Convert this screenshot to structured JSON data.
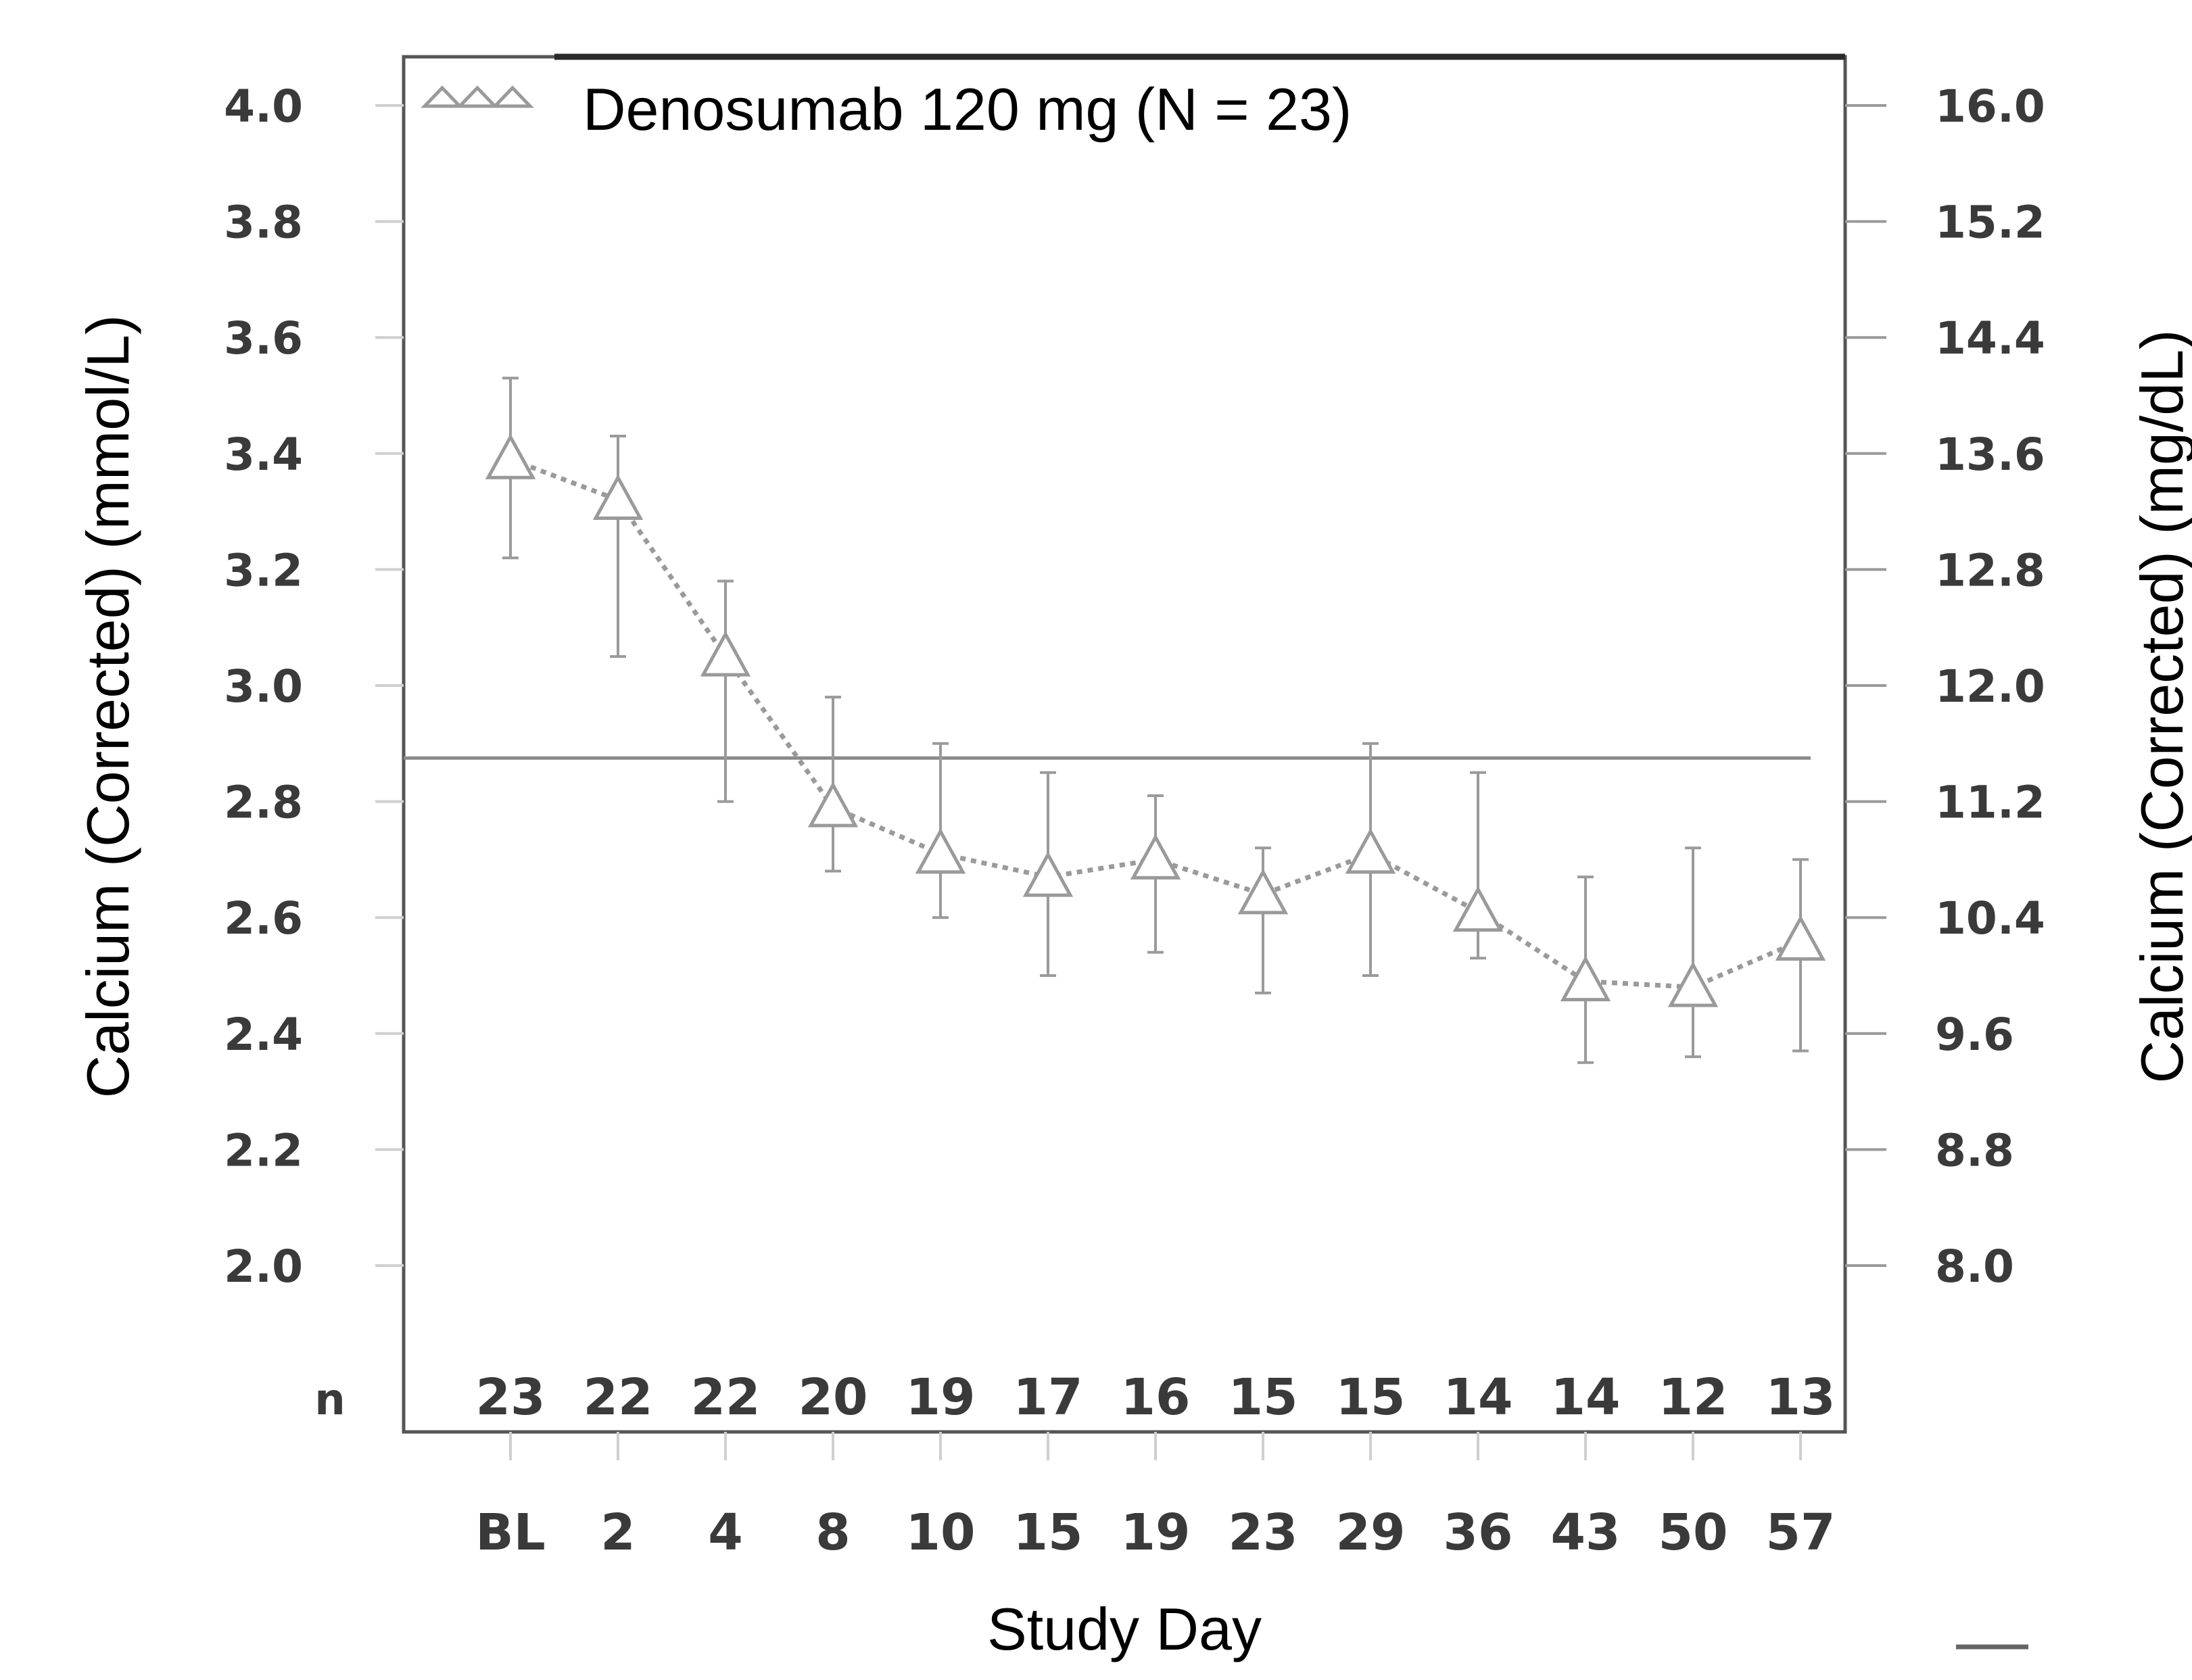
{
  "chart_data": {
    "type": "line",
    "title": "",
    "xlabel": "Study Day",
    "ylabel_left": "Calcium (Corrected) (mmol/L)",
    "ylabel_right": "Calcium (Corrected) (mg/dL)",
    "ylim": [
      1.8,
      4.0
    ],
    "left_ticks": [
      "2.0",
      "2.2",
      "2.4",
      "2.6",
      "2.8",
      "3.0",
      "3.2",
      "3.4",
      "3.6",
      "3.8",
      "4.0"
    ],
    "left_tick_values": [
      2.0,
      2.2,
      2.4,
      2.6,
      2.8,
      3.0,
      3.2,
      3.4,
      3.6,
      3.8,
      4.0
    ],
    "right_ticks": [
      "8.0",
      "8.8",
      "9.6",
      "10.4",
      "11.2",
      "12.0",
      "12.8",
      "13.6",
      "14.4",
      "15.2",
      "16.0"
    ],
    "right_tick_values": [
      8.0,
      8.8,
      9.6,
      10.4,
      11.2,
      12.0,
      12.8,
      13.6,
      14.4,
      15.2,
      16.0
    ],
    "categories": [
      "BL",
      "2",
      "4",
      "8",
      "10",
      "15",
      "19",
      "23",
      "29",
      "36",
      "43",
      "50",
      "57"
    ],
    "n_label": "n",
    "n_values": [
      "23",
      "22",
      "22",
      "20",
      "19",
      "17",
      "16",
      "15",
      "15",
      "14",
      "14",
      "12",
      "13"
    ],
    "reference_line": 2.875,
    "legend": {
      "position": "top-left",
      "label": "Denosumab 120 mg (N = 23)"
    },
    "series": [
      {
        "name": "Denosumab 120 mg (N = 23)",
        "marker": "open-triangle",
        "line_style": "dotted",
        "color": "#9a9a9a",
        "values": [
          3.39,
          3.32,
          3.05,
          2.79,
          2.71,
          2.67,
          2.7,
          2.64,
          2.71,
          2.61,
          2.49,
          2.48,
          2.56
        ],
        "error_low": [
          3.22,
          3.05,
          2.8,
          2.68,
          2.6,
          2.5,
          2.54,
          2.47,
          2.5,
          2.53,
          2.35,
          2.36,
          2.37
        ],
        "error_high": [
          3.53,
          3.43,
          3.18,
          2.98,
          2.9,
          2.85,
          2.81,
          2.72,
          2.9,
          2.85,
          2.67,
          2.72,
          2.7
        ]
      }
    ]
  }
}
